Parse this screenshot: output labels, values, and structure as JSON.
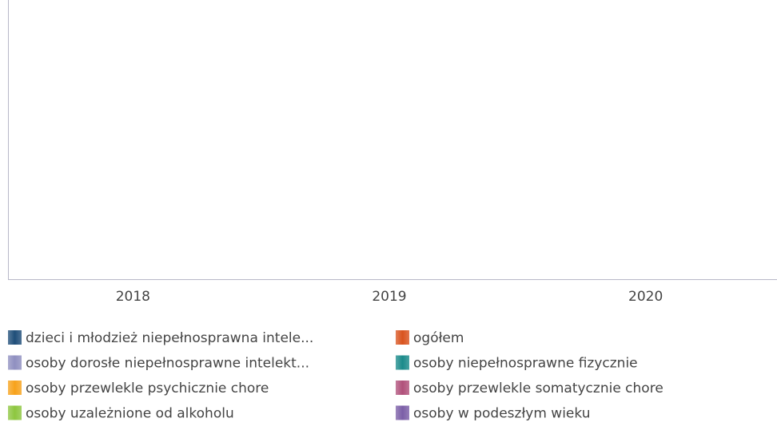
{
  "chart_data": {
    "type": "bar",
    "categories": [
      "2018",
      "2019",
      "2020"
    ],
    "series": [
      {
        "name": "dzieci i młodzież niepełnosprawna intele...",
        "color": "#1f4e79",
        "values": [
          null,
          null,
          null
        ]
      },
      {
        "name": "ogółem",
        "color": "#d9531e",
        "values": [
          null,
          null,
          null
        ]
      },
      {
        "name": "osoby dorosłe niepełnosprawne intelekt...",
        "color": "#8f8fc0",
        "values": [
          null,
          null,
          null
        ]
      },
      {
        "name": "osoby niepełnosprawne fizycznie",
        "color": "#1a8a8a",
        "values": [
          null,
          null,
          null
        ]
      },
      {
        "name": "osoby przewlekle psychicznie chore",
        "color": "#f7a21b",
        "values": [
          null,
          null,
          null
        ]
      },
      {
        "name": "osoby przewlekle somatycznie chore",
        "color": "#b0507a",
        "values": [
          null,
          null,
          null
        ]
      },
      {
        "name": "osoby uzależnione od alkoholu",
        "color": "#8dc63f",
        "values": [
          null,
          null,
          null
        ]
      },
      {
        "name": "osoby w podeszłym wieku",
        "color": "#7b5ea7",
        "values": [
          null,
          null,
          null
        ]
      }
    ]
  }
}
